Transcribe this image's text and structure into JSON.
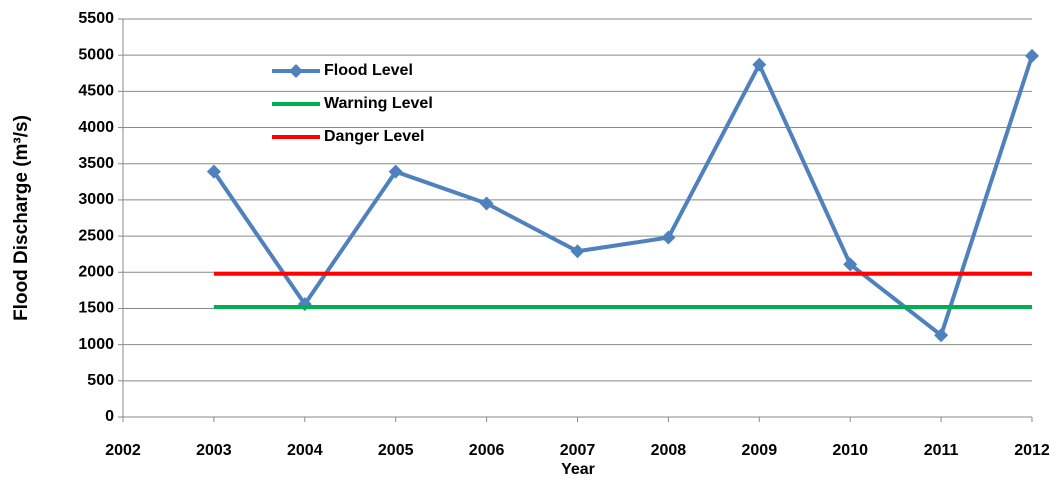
{
  "chart_data": {
    "type": "line",
    "y_label": "Flood Discharge (m³/s)",
    "x_label": "Year",
    "xlim": [
      2002,
      2012
    ],
    "xticks": [
      2002,
      2003,
      2004,
      2005,
      2006,
      2007,
      2008,
      2009,
      2010,
      2011,
      2012
    ],
    "ylim": [
      0,
      5500
    ],
    "yticks": [
      0,
      500,
      1000,
      1500,
      2000,
      2500,
      3000,
      3500,
      4000,
      4500,
      5000,
      5500
    ],
    "grid": true,
    "legend": "upper left",
    "series": [
      {
        "name": "Flood Level",
        "color": "#4f81bd",
        "marker": "diamond",
        "x": [
          2003,
          2004,
          2005,
          2006,
          2007,
          2008,
          2009,
          2010,
          2011,
          2012
        ],
        "values": [
          3390,
          1560,
          3390,
          2950,
          2290,
          2480,
          4870,
          2110,
          1130,
          4990
        ]
      },
      {
        "name": "Warning Level",
        "color": "#00b050",
        "x": [
          2003,
          2012
        ],
        "values": [
          1520,
          1520
        ]
      },
      {
        "name": "Danger Level",
        "color": "#ff0000",
        "x": [
          2003,
          2012
        ],
        "values": [
          1980,
          1980
        ]
      }
    ]
  }
}
